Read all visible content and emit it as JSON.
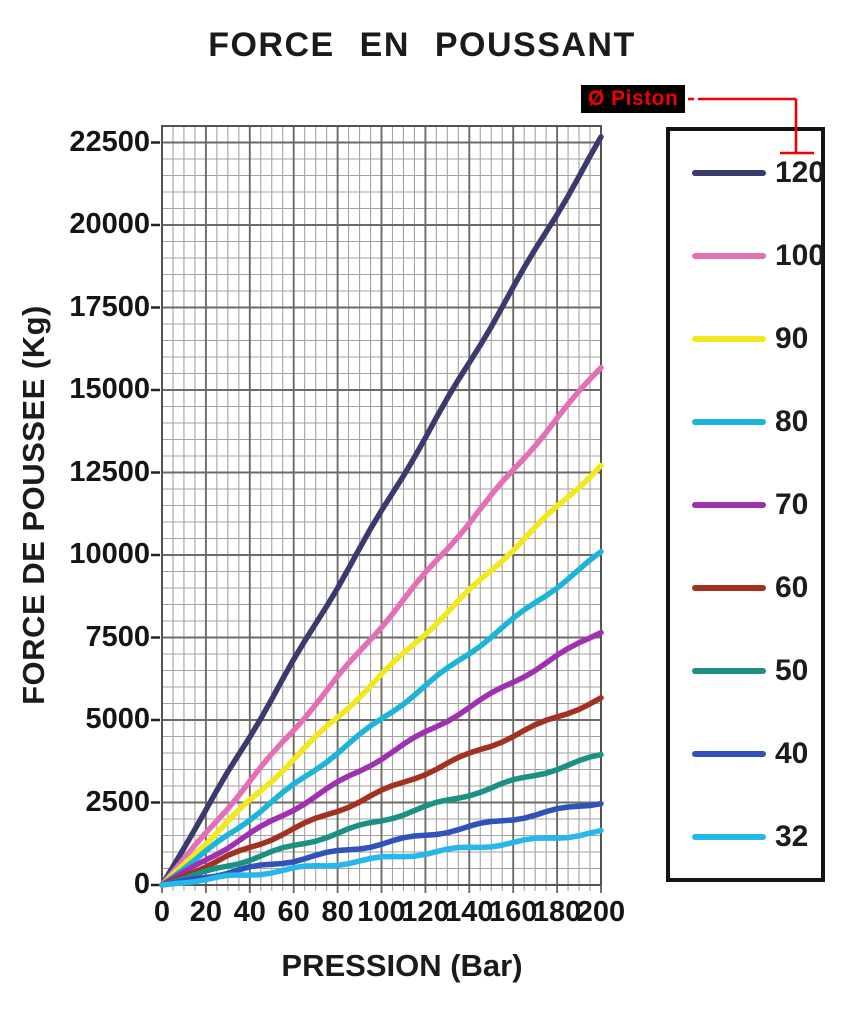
{
  "title": "FORCE EN POUSSANT",
  "x_axis": {
    "title": "PRESSION (Bar)",
    "ticks": [
      0,
      20,
      40,
      60,
      80,
      100,
      120,
      140,
      160,
      180,
      200
    ]
  },
  "y_axis": {
    "title": "FORCE DE POUSSEE (Kg)",
    "ticks": [
      0,
      2500,
      5000,
      7500,
      10000,
      12500,
      15000,
      17500,
      20000,
      22500
    ]
  },
  "legend": {
    "header": "Ø Piston",
    "header_color": "#f10000",
    "header_bg": "#000000"
  },
  "colors": {
    "grid_minor": "#a6a39e",
    "grid_major": "#6e6b66",
    "plot_border": "#56534e",
    "tick": "#222222",
    "callout_red": "#f10000"
  },
  "chart_data": {
    "type": "line",
    "title": "FORCE EN POUSSANT",
    "xlabel": "PRESSION (Bar)",
    "ylabel": "FORCE DE POUSSEE (Kg)",
    "legend_title": "Ø Piston",
    "legend_position": "right",
    "grid": {
      "on": true,
      "minor_x_step": 5,
      "minor_y_step": 500,
      "major_x_step": 20,
      "major_y_step": 2500
    },
    "xlim": [
      0,
      200
    ],
    "ylim": [
      0,
      23000
    ],
    "x": [
      0,
      20,
      40,
      60,
      80,
      100,
      120,
      140,
      160,
      180,
      200
    ],
    "series": [
      {
        "name": "120",
        "color": "#3b3a6e",
        "values": [
          0,
          2262,
          4524,
          6786,
          9048,
          11310,
          13572,
          15834,
          18096,
          20358,
          22620
        ]
      },
      {
        "name": "100",
        "color": "#e46fb7",
        "values": [
          0,
          1571,
          3142,
          4712,
          6283,
          7854,
          9425,
          10996,
          12566,
          14137,
          15708
        ]
      },
      {
        "name": "90",
        "color": "#f2e81e",
        "values": [
          0,
          1272,
          2545,
          3817,
          5089,
          6362,
          7634,
          8906,
          10179,
          11451,
          12723
        ]
      },
      {
        "name": "80",
        "color": "#1cb4d8",
        "values": [
          0,
          1005,
          2011,
          3016,
          4021,
          5027,
          6032,
          7037,
          8042,
          9048,
          10053
        ]
      },
      {
        "name": "70",
        "color": "#9f30b0",
        "values": [
          0,
          770,
          1539,
          2309,
          3079,
          3848,
          4618,
          5388,
          6158,
          6927,
          7697
        ]
      },
      {
        "name": "60",
        "color": "#a33120",
        "values": [
          0,
          565,
          1131,
          1696,
          2262,
          2827,
          3393,
          3958,
          4524,
          5089,
          5655
        ]
      },
      {
        "name": "50",
        "color": "#1b9183",
        "values": [
          0,
          393,
          785,
          1178,
          1571,
          1963,
          2356,
          2749,
          3142,
          3534,
          3927
        ]
      },
      {
        "name": "40",
        "color": "#3151bb",
        "values": [
          0,
          251,
          503,
          754,
          1005,
          1257,
          1508,
          1759,
          2011,
          2262,
          2513
        ]
      },
      {
        "name": "32",
        "color": "#27b7ea",
        "values": [
          0,
          161,
          322,
          482,
          643,
          804,
          965,
          1126,
          1287,
          1447,
          1608
        ]
      }
    ]
  }
}
